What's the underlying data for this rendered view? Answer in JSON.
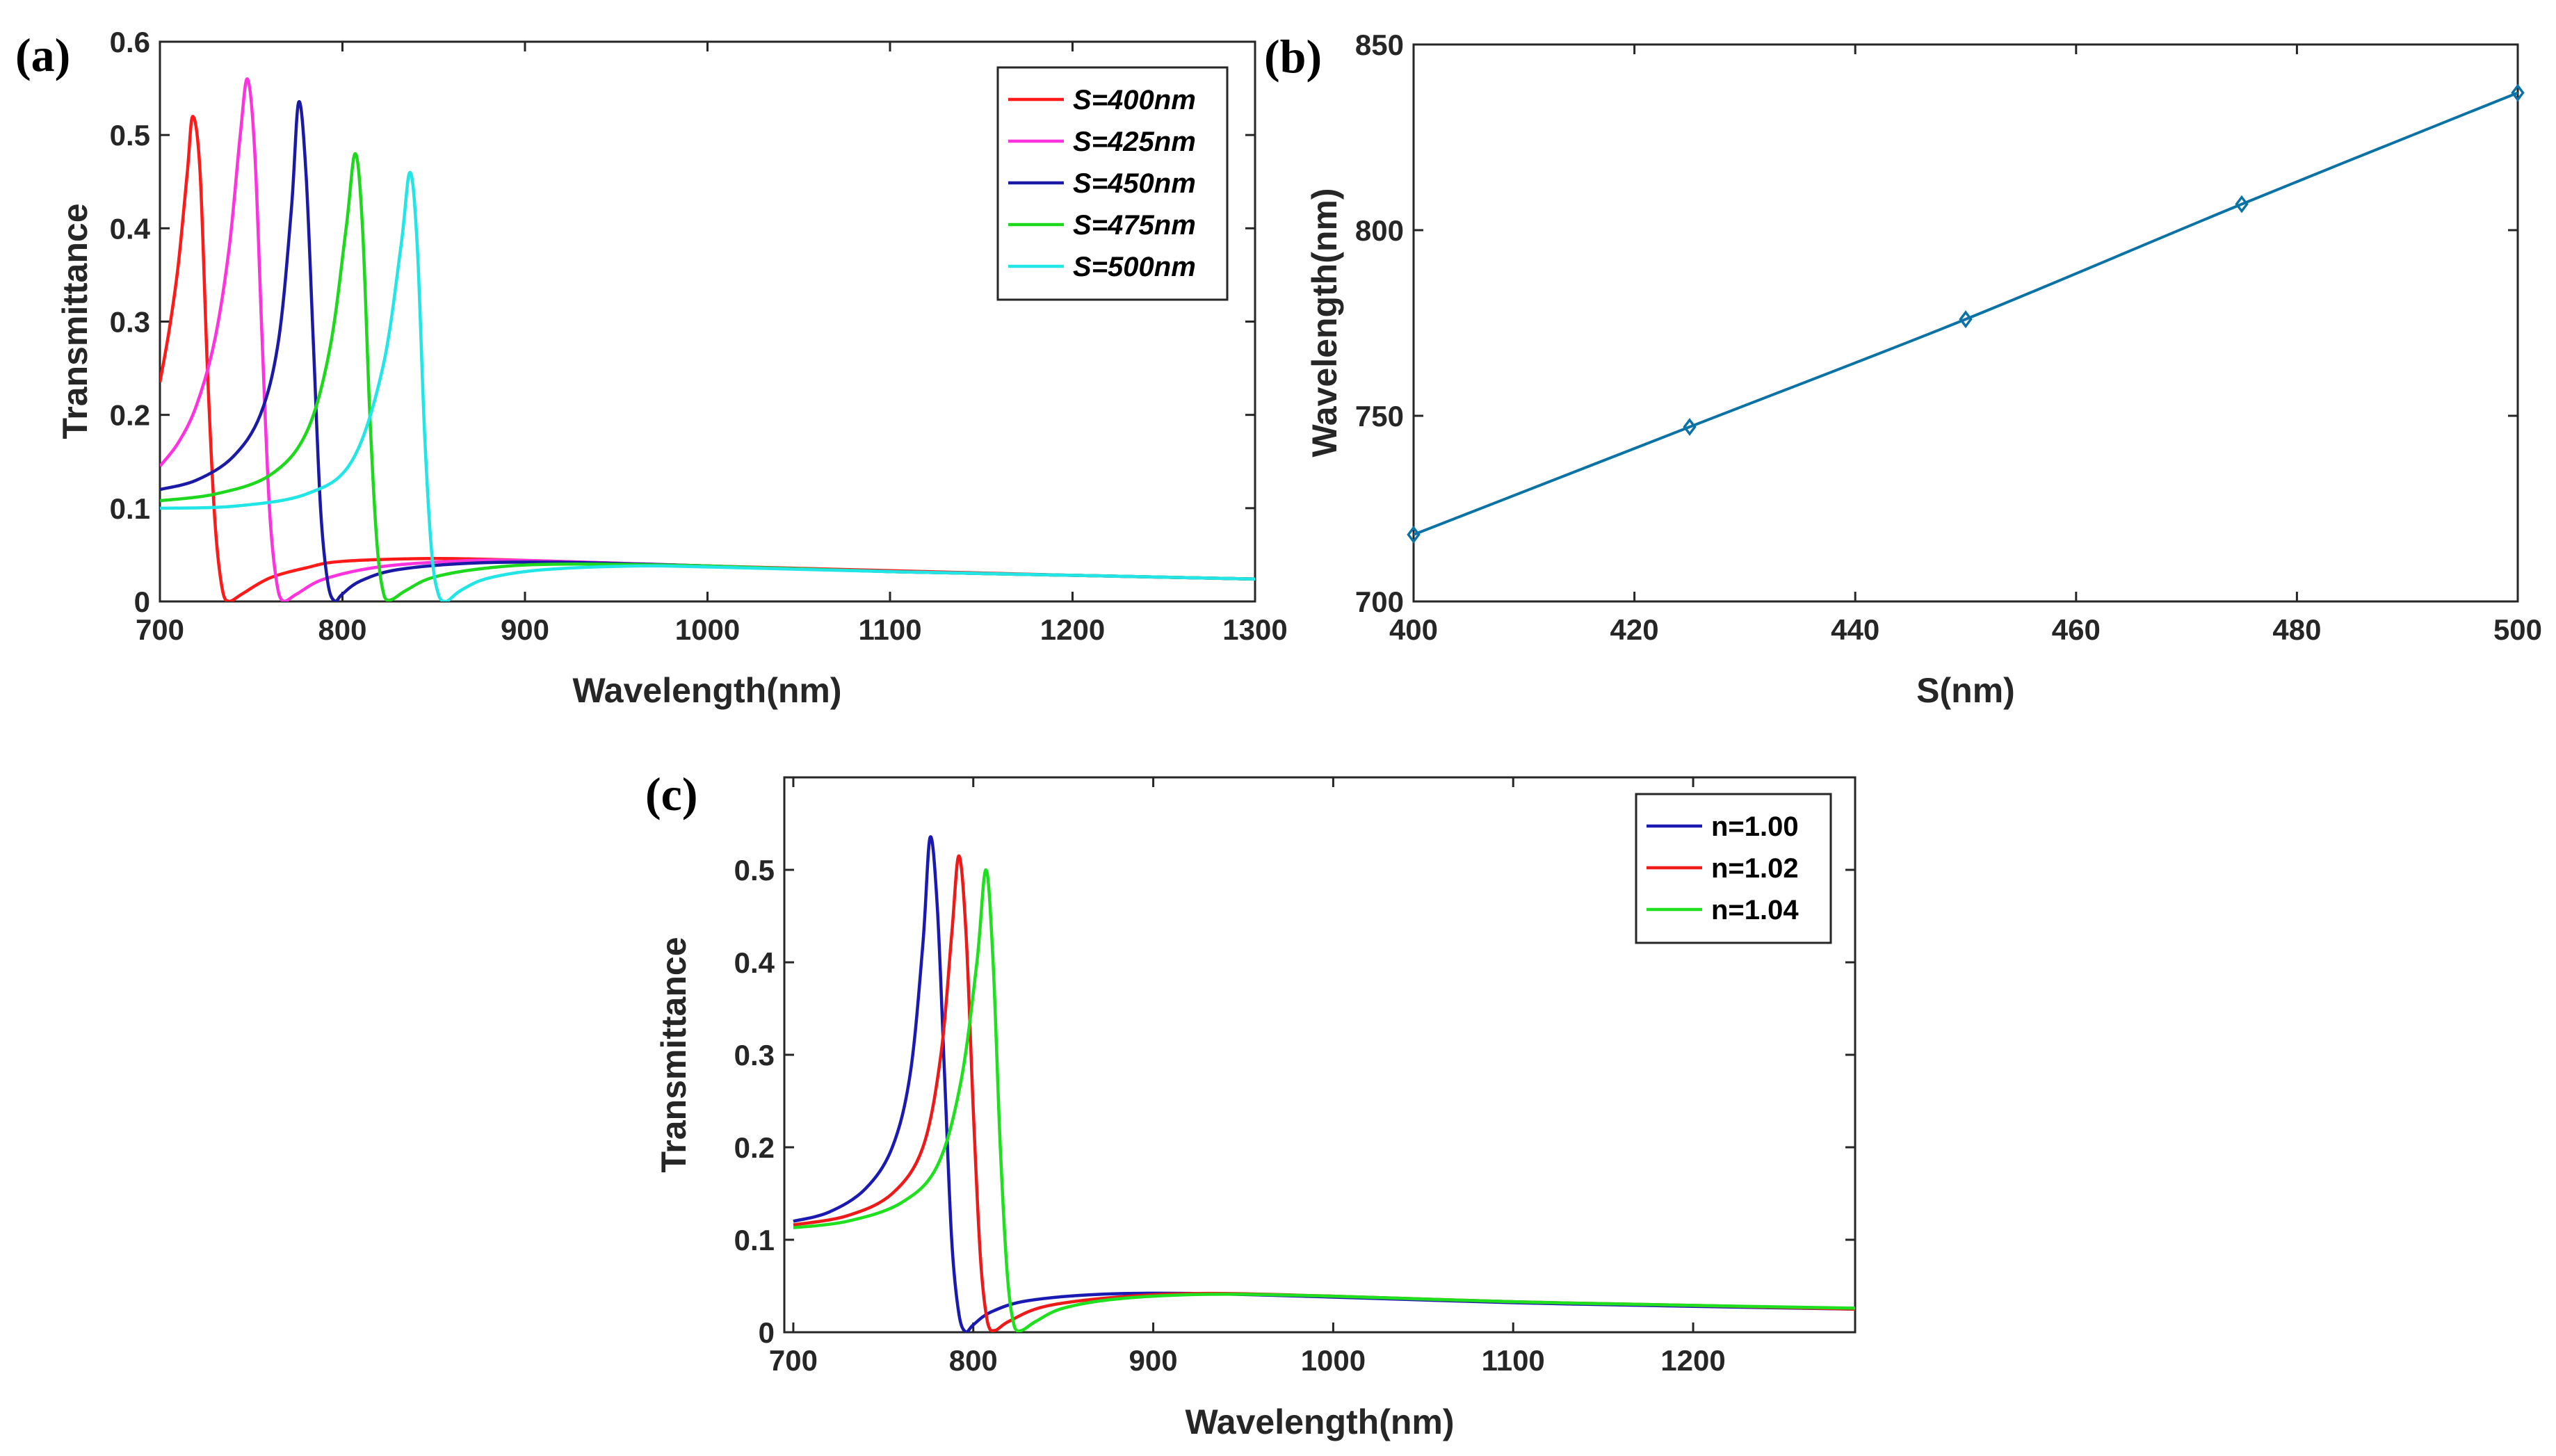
{
  "chart_data": [
    {
      "panel": "(a)",
      "type": "line",
      "xlabel": "Wavelength(nm)",
      "ylabel": "Transmittance",
      "xlim": [
        700,
        1300
      ],
      "ylim": [
        0,
        0.6
      ],
      "xticks": [
        "700",
        "800",
        "900",
        "1000",
        "1100",
        "1200",
        "1300"
      ],
      "yticks": [
        "0",
        "0.1",
        "0.2",
        "0.3",
        "0.4",
        "0.5",
        "0.6"
      ],
      "legend_position": "top-right",
      "legend_italic": true,
      "series": [
        {
          "name": "S=400nm",
          "color": "#ff1a1a",
          "x": [
            700,
            705,
            710,
            715,
            718,
            722,
            726,
            730,
            734,
            738,
            745,
            760,
            780,
            800,
            850,
            900,
            950,
            1000,
            1100,
            1200,
            1300
          ],
          "y": [
            0.235,
            0.29,
            0.36,
            0.46,
            0.52,
            0.46,
            0.25,
            0.09,
            0.015,
            0.0,
            0.008,
            0.025,
            0.036,
            0.043,
            0.046,
            0.044,
            0.041,
            0.038,
            0.033,
            0.028,
            0.024
          ]
        },
        {
          "name": "S=425nm",
          "color": "#ff33dd",
          "x": [
            700,
            710,
            720,
            730,
            738,
            744,
            748,
            752,
            756,
            760,
            764,
            768,
            775,
            790,
            820,
            860,
            900,
            1000,
            1100,
            1200,
            1300
          ],
          "y": [
            0.145,
            0.17,
            0.21,
            0.28,
            0.38,
            0.5,
            0.56,
            0.48,
            0.28,
            0.1,
            0.02,
            0.0,
            0.008,
            0.024,
            0.037,
            0.043,
            0.044,
            0.038,
            0.032,
            0.028,
            0.024
          ]
        },
        {
          "name": "S=450nm",
          "color": "#1a1aa6",
          "x": [
            700,
            720,
            740,
            755,
            765,
            772,
            776,
            780,
            784,
            788,
            792,
            796,
            800,
            810,
            830,
            870,
            920,
            1000,
            1100,
            1200,
            1300
          ],
          "y": [
            0.12,
            0.13,
            0.155,
            0.2,
            0.28,
            0.42,
            0.535,
            0.46,
            0.28,
            0.1,
            0.02,
            0.0,
            0.008,
            0.022,
            0.034,
            0.041,
            0.042,
            0.038,
            0.032,
            0.028,
            0.024
          ]
        },
        {
          "name": "S=475nm",
          "color": "#1ed81e",
          "x": [
            700,
            730,
            760,
            780,
            793,
            802,
            807,
            811,
            815,
            819,
            823,
            827,
            835,
            850,
            880,
            920,
            1000,
            1100,
            1200,
            1300
          ],
          "y": [
            0.108,
            0.115,
            0.135,
            0.18,
            0.27,
            0.4,
            0.48,
            0.4,
            0.2,
            0.06,
            0.005,
            0.002,
            0.012,
            0.026,
            0.036,
            0.04,
            0.038,
            0.032,
            0.028,
            0.024
          ]
        },
        {
          "name": "S=500nm",
          "color": "#22e5e5",
          "x": [
            700,
            740,
            780,
            805,
            822,
            832,
            837,
            841,
            845,
            849,
            853,
            857,
            865,
            880,
            910,
            960,
            1000,
            1100,
            1200,
            1300
          ],
          "y": [
            0.1,
            0.102,
            0.115,
            0.15,
            0.25,
            0.38,
            0.46,
            0.38,
            0.18,
            0.05,
            0.005,
            0.0,
            0.012,
            0.025,
            0.034,
            0.038,
            0.037,
            0.032,
            0.028,
            0.024
          ]
        }
      ]
    },
    {
      "panel": "(b)",
      "type": "line",
      "xlabel": "S(nm)",
      "ylabel": "Wavelength(nm)",
      "xlim": [
        400,
        500
      ],
      "ylim": [
        700,
        850
      ],
      "xticks": [
        "400",
        "420",
        "440",
        "460",
        "480",
        "500"
      ],
      "yticks": [
        "700",
        "750",
        "800",
        "850"
      ],
      "marker": "diamond",
      "series": [
        {
          "name": "Wavelength",
          "color": "#0b72a6",
          "x": [
            400,
            425,
            450,
            475,
            500
          ],
          "y": [
            718,
            747,
            776,
            807,
            837
          ]
        }
      ]
    },
    {
      "panel": "(c)",
      "type": "line",
      "xlabel": "Wavelength(nm)",
      "ylabel": "Transmittance",
      "xlim": [
        695,
        1290
      ],
      "ylim": [
        0,
        0.6
      ],
      "xticks": [
        "700",
        "800",
        "900",
        "1000",
        "1100",
        "1200"
      ],
      "yticks": [
        "0",
        "0.1",
        "0.2",
        "0.3",
        "0.4",
        "0.5"
      ],
      "legend_position": "top-right",
      "legend_italic": false,
      "series": [
        {
          "name": "n=1.00",
          "color": "#1a1ab3",
          "x": [
            700,
            720,
            740,
            755,
            765,
            772,
            776,
            780,
            784,
            788,
            792,
            796,
            800,
            810,
            830,
            870,
            920,
            1000,
            1100,
            1200,
            1290
          ],
          "y": [
            0.12,
            0.13,
            0.155,
            0.2,
            0.28,
            0.42,
            0.535,
            0.46,
            0.28,
            0.1,
            0.02,
            0.0,
            0.008,
            0.022,
            0.034,
            0.041,
            0.042,
            0.038,
            0.032,
            0.028,
            0.025
          ]
        },
        {
          "name": "n=1.02",
          "color": "#ee1a1a",
          "x": [
            700,
            730,
            755,
            772,
            782,
            788,
            792,
            796,
            800,
            804,
            808,
            812,
            820,
            840,
            880,
            930,
            1000,
            1100,
            1200,
            1290
          ],
          "y": [
            0.116,
            0.126,
            0.15,
            0.2,
            0.3,
            0.43,
            0.515,
            0.43,
            0.24,
            0.08,
            0.01,
            0.002,
            0.012,
            0.028,
            0.038,
            0.042,
            0.039,
            0.033,
            0.029,
            0.025
          ]
        },
        {
          "name": "n=1.04",
          "color": "#1ee01e",
          "x": [
            700,
            730,
            760,
            780,
            793,
            802,
            807,
            811,
            815,
            819,
            823,
            827,
            835,
            850,
            880,
            930,
            1000,
            1100,
            1200,
            1290
          ],
          "y": [
            0.113,
            0.12,
            0.14,
            0.18,
            0.27,
            0.4,
            0.5,
            0.4,
            0.2,
            0.06,
            0.005,
            0.002,
            0.012,
            0.026,
            0.036,
            0.041,
            0.039,
            0.033,
            0.029,
            0.026
          ]
        }
      ]
    }
  ]
}
